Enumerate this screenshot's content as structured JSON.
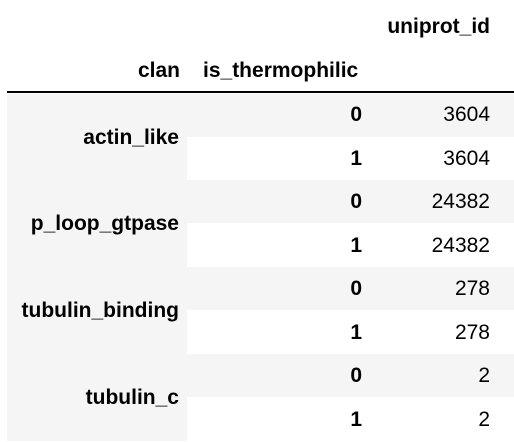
{
  "table": {
    "column_header": "uniprot_id",
    "index_headers": [
      "clan",
      "is_thermophilic"
    ],
    "groups": [
      {
        "clan": "actin_like",
        "rows": [
          {
            "is_thermophilic": "0",
            "uniprot_id": "3604"
          },
          {
            "is_thermophilic": "1",
            "uniprot_id": "3604"
          }
        ]
      },
      {
        "clan": "p_loop_gtpase",
        "rows": [
          {
            "is_thermophilic": "0",
            "uniprot_id": "24382"
          },
          {
            "is_thermophilic": "1",
            "uniprot_id": "24382"
          }
        ]
      },
      {
        "clan": "tubulin_binding",
        "rows": [
          {
            "is_thermophilic": "0",
            "uniprot_id": "278"
          },
          {
            "is_thermophilic": "1",
            "uniprot_id": "278"
          }
        ]
      },
      {
        "clan": "tubulin_c",
        "rows": [
          {
            "is_thermophilic": "0",
            "uniprot_id": "2"
          },
          {
            "is_thermophilic": "1",
            "uniprot_id": "2"
          }
        ]
      }
    ]
  },
  "colors": {
    "stripe": "#f5f5f5",
    "text": "#000000",
    "header_rule": "#000000"
  }
}
